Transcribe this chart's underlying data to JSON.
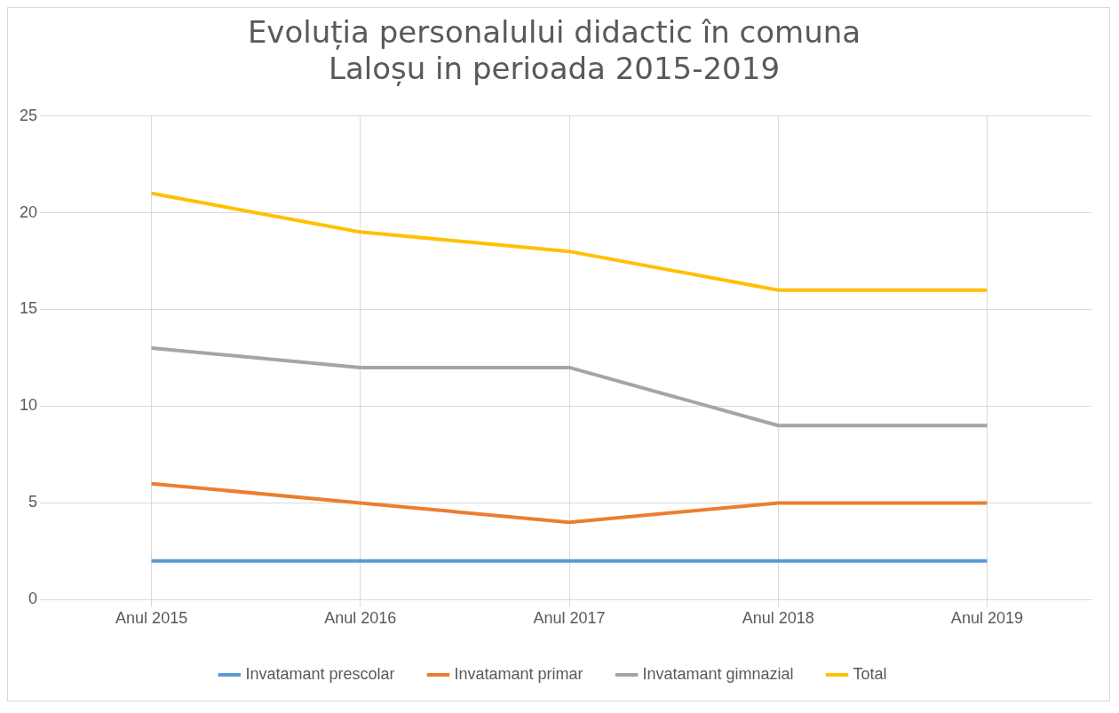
{
  "chart_data": {
    "type": "line",
    "title": "Evoluția personalului didactic în comuna Laloșu in perioada 2015-2019",
    "categories": [
      "Anul 2015",
      "Anul 2016",
      "Anul 2017",
      "Anul 2018",
      "Anul 2019"
    ],
    "series": [
      {
        "name": "Invatamant prescolar",
        "color": "#5b9bd5",
        "values": [
          2,
          2,
          2,
          2,
          2
        ]
      },
      {
        "name": "Invatamant primar",
        "color": "#ed7d31",
        "values": [
          6,
          5,
          4,
          5,
          5
        ]
      },
      {
        "name": "Invatamant gimnazial",
        "color": "#a5a5a5",
        "values": [
          13,
          12,
          12,
          9,
          9
        ]
      },
      {
        "name": "Total",
        "color": "#ffc000",
        "values": [
          21,
          19,
          18,
          16,
          16
        ]
      }
    ],
    "ylim": [
      0,
      25
    ],
    "yticks": [
      0,
      5,
      10,
      15,
      20,
      25
    ],
    "grid": true,
    "legend": "bottom",
    "marker": "none",
    "line_style": "solid"
  }
}
